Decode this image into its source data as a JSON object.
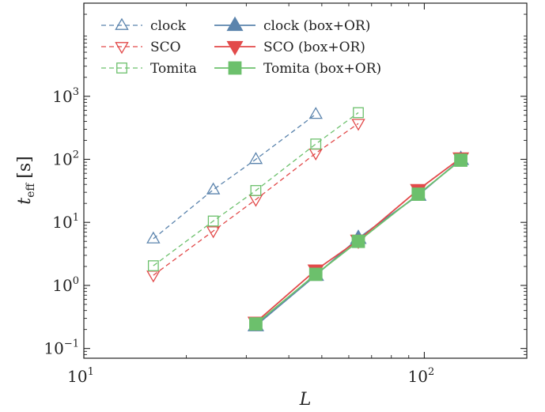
{
  "chart_data": {
    "type": "line",
    "xscale": "log",
    "yscale": "log",
    "xlim": [
      10,
      200
    ],
    "ylim": [
      0.07,
      30000
    ],
    "xlabel": "L",
    "ylabel": {
      "main": "t",
      "sub": "eff",
      "unit": "[s]"
    },
    "x_ticks": [
      {
        "value": 10,
        "base": "10",
        "exp": "1"
      },
      {
        "value": 100,
        "base": "10",
        "exp": "2"
      }
    ],
    "y_ticks": [
      {
        "value": 0.1,
        "base": "10",
        "exp": "−1"
      },
      {
        "value": 1,
        "base": "10",
        "exp": "0"
      },
      {
        "value": 10,
        "base": "10",
        "exp": "1"
      },
      {
        "value": 100,
        "base": "10",
        "exp": "2"
      },
      {
        "value": 1000,
        "base": "10",
        "exp": "3"
      }
    ],
    "legend_position": "top-left",
    "series": [
      {
        "name": "clock",
        "color": "#5b84ad",
        "marker": "triangle-up",
        "filled": false,
        "dashed": true,
        "x": [
          16,
          24,
          32,
          48
        ],
        "y": [
          5.5,
          33,
          100,
          520
        ]
      },
      {
        "name": "SCO",
        "color": "#e24a4a",
        "marker": "triangle-down",
        "filled": false,
        "dashed": true,
        "x": [
          16,
          24,
          32,
          48,
          64
        ],
        "y": [
          1.45,
          7.3,
          23,
          125,
          370
        ]
      },
      {
        "name": "Tomita",
        "color": "#6cc06c",
        "marker": "square",
        "filled": false,
        "dashed": true,
        "x": [
          16,
          24,
          32,
          48,
          64
        ],
        "y": [
          2.05,
          10.5,
          32,
          175,
          550
        ]
      },
      {
        "name": "clock (box+OR)",
        "color": "#5b84ad",
        "marker": "triangle-up",
        "filled": true,
        "dashed": false,
        "x": [
          32,
          48,
          64,
          96,
          128
        ],
        "y": [
          0.23,
          1.45,
          5.6,
          27,
          100
        ]
      },
      {
        "name": "SCO (box+OR)",
        "color": "#e24a4a",
        "marker": "triangle-down",
        "filled": true,
        "dashed": false,
        "x": [
          32,
          48,
          64,
          96,
          128
        ],
        "y": [
          0.26,
          1.75,
          5.2,
          33,
          105
        ]
      },
      {
        "name": "Tomita (box+OR)",
        "color": "#6cc06c",
        "marker": "square",
        "filled": true,
        "dashed": false,
        "x": [
          32,
          48,
          64,
          96,
          128
        ],
        "y": [
          0.245,
          1.5,
          5.0,
          28,
          97
        ]
      }
    ]
  }
}
